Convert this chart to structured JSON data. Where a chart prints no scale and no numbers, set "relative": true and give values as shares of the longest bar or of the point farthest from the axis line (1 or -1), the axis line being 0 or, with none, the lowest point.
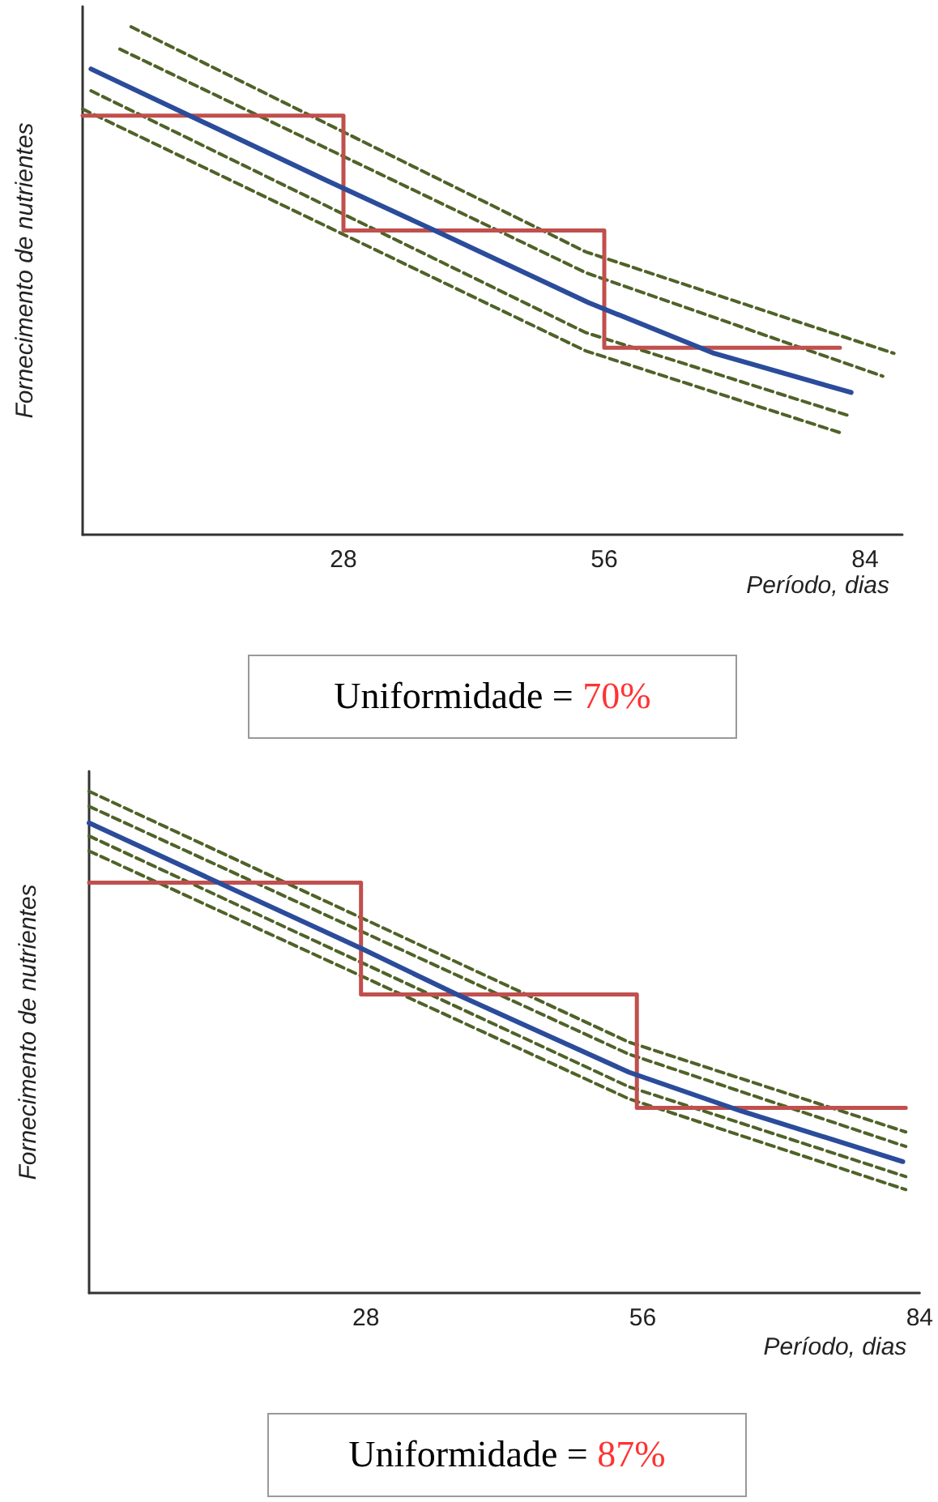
{
  "chart_data": [
    {
      "type": "line",
      "xlabel": "Período, dias",
      "ylabel": "Fornecimento de nutrientes",
      "relative": true,
      "xlim": [
        0,
        88
      ],
      "xticks": [
        28,
        56,
        84
      ],
      "tick_labels": "x",
      "grid": false,
      "legend": false,
      "marker": "none",
      "annotations": [
        "Uniformidade = 70%"
      ],
      "series": [
        {
          "type": "line",
          "color": "#4f6228",
          "line_style": "dashed",
          "x": [
            5.2,
            54,
            87.1
          ],
          "values": [
            1.0,
            0.557,
            0.357
          ]
        },
        {
          "type": "line",
          "color": "#4f6228",
          "line_style": "dashed",
          "x": [
            4,
            54,
            85.9
          ],
          "values": [
            0.956,
            0.516,
            0.312
          ]
        },
        {
          "type": "line",
          "color": "#4f6228",
          "line_style": "dashed",
          "x": [
            0.9,
            54,
            82.5
          ],
          "values": [
            0.874,
            0.398,
            0.233
          ]
        },
        {
          "type": "line",
          "color": "#4f6228",
          "line_style": "dashed",
          "x": [
            0,
            54,
            81.3
          ],
          "values": [
            0.838,
            0.362,
            0.201
          ]
        },
        {
          "type": "step",
          "color": "#c0504d",
          "line_style": "solid",
          "x": [
            0,
            28,
            56,
            81.3
          ],
          "values": [
            0.825,
            0.599,
            0.368,
            0.368
          ]
        },
        {
          "type": "line",
          "color": "#2b4c9b",
          "line_style": "solid",
          "x": [
            0.9,
            26,
            37.8,
            54.3,
            67.8,
            82.5
          ],
          "values": [
            0.917,
            0.699,
            0.599,
            0.457,
            0.357,
            0.28
          ]
        }
      ]
    },
    {
      "type": "line",
      "xlabel": "Período, dias",
      "ylabel": "Fornecimento de nutrientes",
      "relative": true,
      "xlim": [
        0,
        84
      ],
      "xticks": [
        28,
        56,
        84
      ],
      "tick_labels": "x",
      "grid": false,
      "legend": false,
      "marker": "none",
      "annotations": [
        "Uniformidade = 87%"
      ],
      "series": [
        {
          "type": "line",
          "color": "#4f6228",
          "line_style": "dashed",
          "x": [
            0,
            54.6,
            82.6
          ],
          "values": [
            1.0,
            0.5,
            0.321
          ]
        },
        {
          "type": "line",
          "color": "#4f6228",
          "line_style": "dashed",
          "x": [
            0,
            54.6,
            82.6
          ],
          "values": [
            0.97,
            0.476,
            0.292
          ]
        },
        {
          "type": "line",
          "color": "#4f6228",
          "line_style": "dashed",
          "x": [
            0,
            54.6,
            82.6
          ],
          "values": [
            0.911,
            0.411,
            0.232
          ]
        },
        {
          "type": "line",
          "color": "#4f6228",
          "line_style": "dashed",
          "x": [
            0,
            54.6,
            82.6
          ],
          "values": [
            0.881,
            0.387,
            0.206
          ]
        },
        {
          "type": "step",
          "color": "#c0504d",
          "line_style": "solid",
          "x": [
            0,
            27.5,
            55.4,
            82.6
          ],
          "values": [
            0.818,
            0.595,
            0.369,
            0.369
          ]
        },
        {
          "type": "line",
          "color": "#2b4c9b",
          "line_style": "solid",
          "x": [
            0,
            27.5,
            37.2,
            54.6,
            65.9,
            82.3
          ],
          "values": [
            0.937,
            0.687,
            0.595,
            0.44,
            0.363,
            0.262
          ]
        }
      ]
    }
  ]
}
